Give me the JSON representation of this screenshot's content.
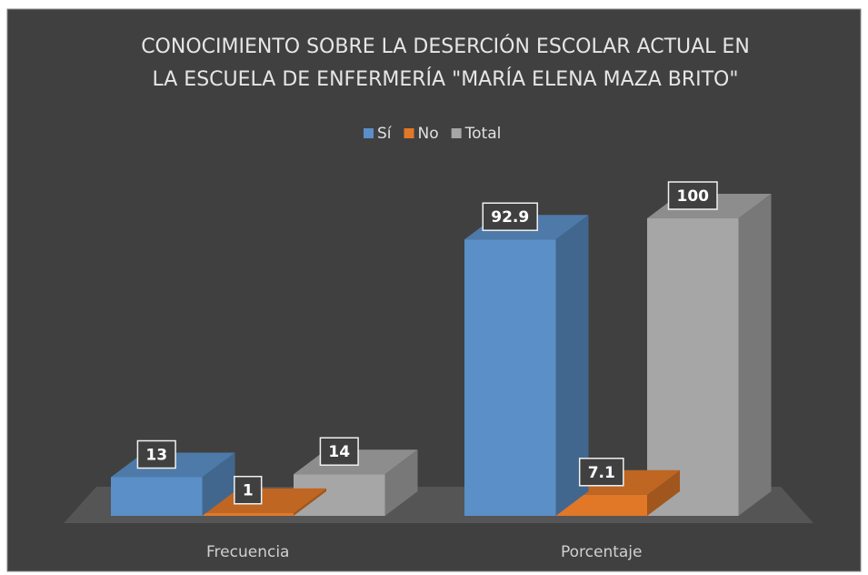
{
  "chart_data": {
    "type": "bar3d",
    "title": [
      "CONOCIMIENTO SOBRE LA DESERCIÓN ESCOLAR ACTUAL EN",
      "LA ESCUELA DE ENFERMERÍA \"MARÍA ELENA MAZA BRITO\""
    ],
    "categories": [
      "Frecuencia",
      "Porcentaje"
    ],
    "series": [
      {
        "name": "Sí",
        "color": "#5b8fc7",
        "values": [
          13,
          92.9
        ]
      },
      {
        "name": "No",
        "color": "#e07828",
        "values": [
          1,
          7.1
        ]
      },
      {
        "name": "Total",
        "color": "#a6a6a6",
        "values": [
          14,
          100
        ]
      }
    ],
    "legend": "top"
  }
}
